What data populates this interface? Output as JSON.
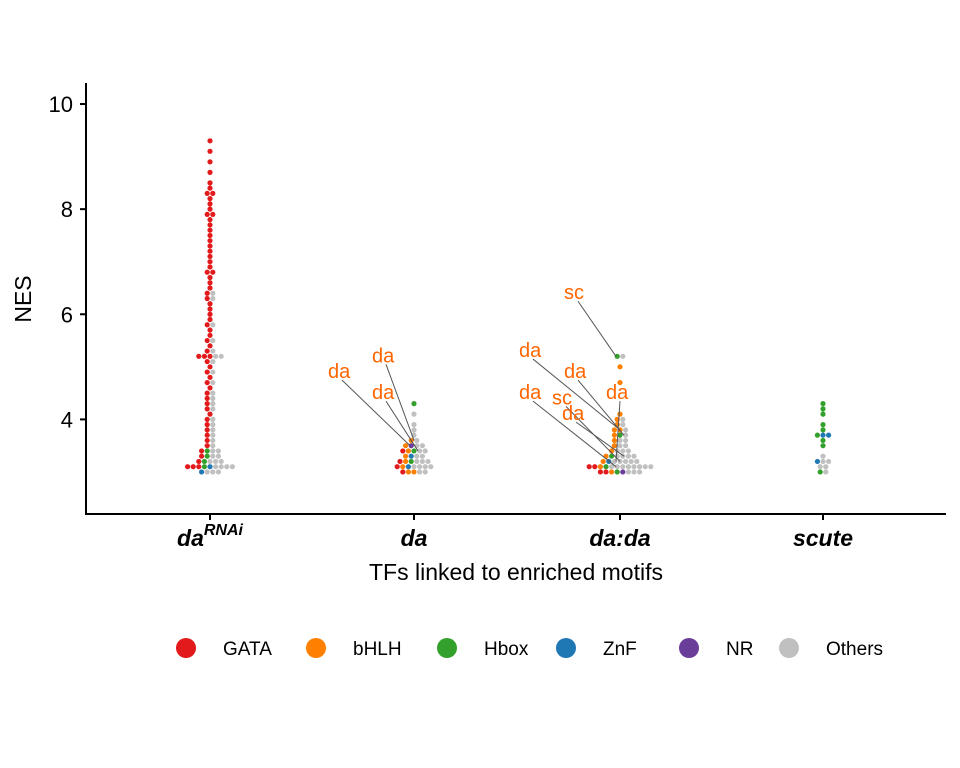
{
  "chart_data": {
    "type": "scatter",
    "subtype": "beeswarm",
    "ylabel": "NES",
    "xlabel": "TFs linked to enriched motifs",
    "ylim": [
      2.2,
      10.4
    ],
    "yticks": [
      4,
      6,
      8,
      10
    ],
    "yticklabels": [
      "4",
      "6",
      "8",
      "10"
    ],
    "grid": false,
    "legend_position": "bottom",
    "categories": [
      {
        "label": "da",
        "superscript": "RNAi"
      },
      {
        "label": "da",
        "superscript": ""
      },
      {
        "label": "da:da",
        "superscript": ""
      },
      {
        "label": "scute",
        "superscript": ""
      }
    ],
    "series": [
      {
        "name": "GATA",
        "color": "#E31A1C",
        "values_by_category": [
          [
            9.3,
            9.1,
            8.9,
            8.7,
            8.5,
            8.4,
            8.3,
            8.3,
            8.2,
            8.1,
            8.0,
            7.9,
            7.9,
            7.8,
            7.7,
            7.6,
            7.5,
            7.4,
            7.3,
            7.2,
            7.1,
            7.0,
            6.9,
            6.8,
            6.8,
            6.7,
            6.6,
            6.5,
            6.4,
            6.3,
            6.2,
            6.1,
            6.0,
            5.9,
            5.8,
            5.7,
            5.6,
            5.5,
            5.4,
            5.3,
            5.2,
            5.2,
            5.2,
            5.1,
            5.0,
            4.9,
            4.8,
            4.7,
            4.6,
            4.5,
            4.4,
            4.3,
            4.2,
            4.1,
            4.0,
            3.9,
            3.8,
            3.7,
            3.6,
            3.5,
            3.4,
            3.3,
            3.2,
            3.1,
            3.1,
            3.1
          ],
          [
            3.4,
            3.2,
            3.1,
            3.0
          ],
          [
            3.1,
            3.1,
            3.0,
            3.0
          ],
          []
        ]
      },
      {
        "name": "bHLH",
        "color": "#FF7F00",
        "values_by_category": [
          [],
          [
            3.6,
            3.5,
            3.4,
            3.3,
            3.2,
            3.1,
            3.0,
            3.0
          ],
          [
            5.0,
            4.7,
            4.1,
            4.0,
            3.9,
            3.8,
            3.8,
            3.7,
            3.6,
            3.5,
            3.4,
            3.3,
            3.2,
            3.1,
            3.0
          ],
          []
        ]
      },
      {
        "name": "Hbox",
        "color": "#33A02C",
        "values_by_category": [
          [
            3.4,
            3.3,
            3.2,
            3.1
          ],
          [
            4.3,
            3.4,
            3.2
          ],
          [
            5.2,
            3.7,
            3.3,
            3.1,
            3.0
          ],
          [
            4.3,
            4.2,
            4.1,
            3.9,
            3.8,
            3.7,
            3.6,
            3.5,
            3.0
          ]
        ]
      },
      {
        "name": "ZnF",
        "color": "#1F78B4",
        "values_by_category": [
          [
            3.0,
            3.1
          ],
          [
            3.3,
            3.1
          ],
          [
            3.2
          ],
          [
            3.7,
            3.7,
            3.2
          ]
        ]
      },
      {
        "name": "NR",
        "color": "#6A3D9A",
        "values_by_category": [
          [],
          [
            3.5
          ],
          [
            3.0
          ],
          []
        ]
      },
      {
        "name": "Others",
        "color": "#C0C0C0",
        "values_by_category": [
          [
            6.4,
            6.3,
            5.8,
            5.5,
            5.3,
            5.2,
            5.2,
            5.1,
            4.9,
            4.7,
            4.5,
            4.4,
            4.3,
            4.2,
            4.0,
            3.9,
            3.8,
            3.7,
            3.6,
            3.5,
            3.4,
            3.4,
            3.3,
            3.3,
            3.2,
            3.2,
            3.2,
            3.1,
            3.1,
            3.1,
            3.1,
            3.0,
            3.0,
            3.0
          ],
          [
            4.1,
            3.9,
            3.8,
            3.7,
            3.6,
            3.5,
            3.5,
            3.4,
            3.4,
            3.3,
            3.3,
            3.2,
            3.2,
            3.2,
            3.1,
            3.1,
            3.1,
            3.1,
            3.0,
            3.0
          ],
          [
            5.2,
            4.0,
            3.9,
            3.8,
            3.7,
            3.6,
            3.6,
            3.5,
            3.5,
            3.4,
            3.4,
            3.4,
            3.3,
            3.3,
            3.3,
            3.3,
            3.2,
            3.2,
            3.2,
            3.2,
            3.2,
            3.1,
            3.1,
            3.1,
            3.1,
            3.1,
            3.1,
            3.1,
            3.1,
            3.0,
            3.0,
            3.0
          ],
          [
            3.3,
            3.2,
            3.2,
            3.1,
            3.1,
            3.0
          ]
        ]
      }
    ],
    "annotations": [
      {
        "text": "da",
        "category": 1,
        "label_y": 4.9,
        "point_y": 3.5
      },
      {
        "text": "da",
        "category": 1,
        "label_y": 5.2,
        "point_y": 3.6
      },
      {
        "text": "da",
        "category": 1,
        "label_y": 4.5,
        "point_y": 3.4
      },
      {
        "text": "sc",
        "category": 2,
        "label_y": 6.4,
        "point_y": 5.2
      },
      {
        "text": "da",
        "category": 2,
        "label_y": 5.3,
        "point_y": 3.8
      },
      {
        "text": "da",
        "category": 2,
        "label_y": 4.9,
        "point_y": 3.7
      },
      {
        "text": "da",
        "category": 2,
        "label_y": 4.5,
        "point_y": 3.1
      },
      {
        "text": "sc",
        "category": 2,
        "label_y": 4.4,
        "point_y": 3.2
      },
      {
        "text": "da",
        "category": 2,
        "label_y": 4.1,
        "point_y": 3.3
      },
      {
        "text": "da",
        "category": 2,
        "label_y": 4.5,
        "point_y": 3.2
      }
    ],
    "annotation_color": "#FF6600"
  }
}
